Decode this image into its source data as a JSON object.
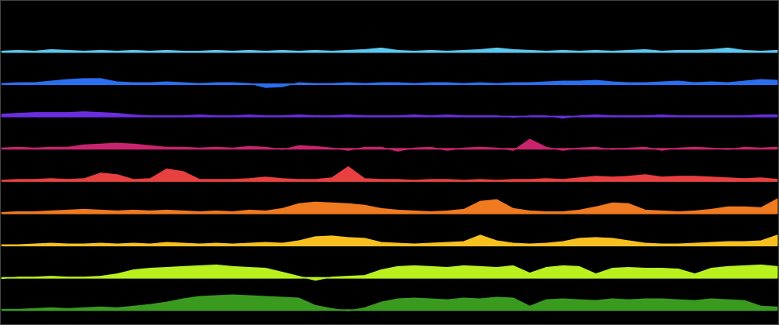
{
  "chart_data": {
    "type": "area",
    "ylim": [
      -10,
      30
    ],
    "series": [
      {
        "color": "#5bc8f0",
        "values": [
          1,
          2,
          1,
          3,
          2,
          1,
          2,
          1,
          2,
          1,
          2,
          1,
          1,
          2,
          1,
          2,
          1,
          2,
          1,
          2,
          1,
          2,
          3,
          5,
          2,
          1,
          2,
          1,
          2,
          3,
          5,
          3,
          2,
          1,
          2,
          1,
          2,
          1,
          2,
          3,
          1,
          2,
          2,
          3,
          5,
          2,
          1,
          2
        ]
      },
      {
        "color": "#2a6ff0",
        "values": [
          1,
          2,
          2,
          4,
          6,
          7,
          7,
          3,
          2,
          2,
          3,
          2,
          1,
          2,
          2,
          1,
          -4,
          -3,
          2,
          1,
          1,
          2,
          1,
          2,
          2,
          1,
          2,
          2,
          1,
          2,
          1,
          2,
          2,
          3,
          4,
          4,
          5,
          3,
          2,
          2,
          3,
          4,
          2,
          3,
          2,
          4,
          6,
          5
        ]
      },
      {
        "color": "#6a2ee0",
        "values": [
          3,
          4,
          5,
          5,
          5,
          6,
          5,
          4,
          2,
          1,
          1,
          1,
          2,
          1,
          1,
          2,
          1,
          1,
          2,
          1,
          1,
          2,
          1,
          1,
          1,
          2,
          1,
          2,
          1,
          1,
          1,
          -1,
          1,
          1,
          -2,
          1,
          2,
          1,
          1,
          1,
          2,
          1,
          1,
          1,
          1,
          1,
          2,
          2
        ]
      },
      {
        "color": "#c8246e",
        "values": [
          1,
          2,
          1,
          2,
          2,
          5,
          6,
          7,
          6,
          4,
          2,
          2,
          1,
          2,
          1,
          3,
          2,
          -1,
          4,
          3,
          1,
          -2,
          2,
          2,
          -3,
          1,
          2,
          -2,
          1,
          2,
          1,
          -2,
          12,
          2,
          -2,
          1,
          2,
          -1,
          1,
          2,
          -2,
          1,
          2,
          1,
          -1,
          2,
          1,
          2
        ]
      },
      {
        "color": "#e84040",
        "values": [
          1,
          2,
          2,
          3,
          2,
          3,
          10,
          8,
          2,
          3,
          15,
          12,
          2,
          2,
          2,
          3,
          5,
          3,
          2,
          2,
          4,
          18,
          3,
          2,
          2,
          1,
          2,
          2,
          1,
          2,
          1,
          2,
          2,
          3,
          2,
          4,
          6,
          5,
          6,
          8,
          5,
          6,
          6,
          5,
          4,
          3,
          4,
          2
        ]
      },
      {
        "color": "#f07a20",
        "values": [
          1,
          2,
          2,
          3,
          4,
          5,
          4,
          3,
          4,
          3,
          4,
          3,
          2,
          3,
          2,
          4,
          3,
          6,
          12,
          14,
          13,
          12,
          10,
          6,
          4,
          3,
          2,
          3,
          5,
          15,
          17,
          6,
          3,
          2,
          2,
          4,
          8,
          13,
          12,
          4,
          3,
          2,
          3,
          5,
          8,
          8,
          7,
          18
        ]
      },
      {
        "color": "#f5c020",
        "values": [
          1,
          1,
          2,
          3,
          2,
          2,
          3,
          2,
          3,
          2,
          4,
          3,
          2,
          3,
          2,
          3,
          4,
          3,
          6,
          11,
          12,
          10,
          9,
          4,
          3,
          2,
          3,
          4,
          5,
          13,
          6,
          3,
          2,
          3,
          5,
          9,
          10,
          9,
          6,
          3,
          2,
          2,
          3,
          4,
          5,
          5,
          6,
          13
        ]
      },
      {
        "color": "#b8f020",
        "values": [
          -1,
          1,
          1,
          2,
          1,
          1,
          2,
          5,
          10,
          12,
          13,
          14,
          15,
          16,
          14,
          13,
          12,
          7,
          2,
          -3,
          1,
          2,
          3,
          10,
          14,
          15,
          14,
          13,
          15,
          14,
          13,
          15,
          6,
          13,
          15,
          14,
          5,
          12,
          13,
          12,
          12,
          11,
          5,
          12,
          14,
          15,
          16,
          14
        ]
      },
      {
        "color": "#3a9a20",
        "values": [
          1,
          1,
          2,
          3,
          2,
          3,
          4,
          3,
          5,
          7,
          10,
          14,
          17,
          18,
          19,
          18,
          17,
          16,
          15,
          6,
          2,
          -1,
          3,
          10,
          14,
          15,
          14,
          13,
          15,
          14,
          16,
          15,
          5,
          13,
          14,
          13,
          12,
          14,
          13,
          14,
          14,
          13,
          12,
          14,
          13,
          12,
          5,
          4
        ]
      }
    ]
  }
}
